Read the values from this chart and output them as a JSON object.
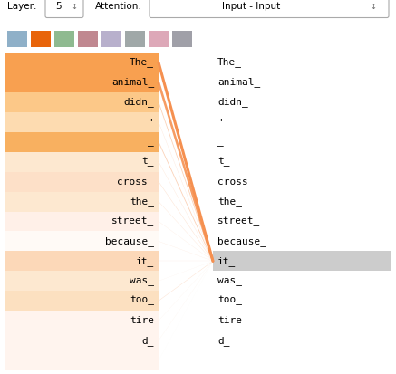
{
  "tokens": [
    "The_",
    "animal_",
    "didn_",
    "'",
    "_",
    "t_",
    "cross_",
    "the_",
    "street_",
    "because_",
    "it_",
    "was_",
    "too_",
    "tire",
    "d_",
    ""
  ],
  "left_bg_colors": [
    "#f8a050",
    "#f8a050",
    "#fcc888",
    "#fddbb0",
    "#f8b060",
    "#fde8d0",
    "#fde0c8",
    "#fde8d0",
    "#fff0e8",
    "#fffaf6",
    "#fcd8b8",
    "#fde8d0",
    "#fce0c0",
    "#fff4ee",
    "#fff4ee",
    "#fff4ee"
  ],
  "attention_weights": [
    0.33,
    0.28,
    0.09,
    0.04,
    0.09,
    0.04,
    0.05,
    0.04,
    0.03,
    0.03,
    0.03,
    0.02,
    0.05,
    0.02,
    0.02,
    0.01
  ],
  "target_token_idx": 10,
  "head_colors": [
    "#8fb0c8",
    "#e8640a",
    "#8fba90",
    "#c08890",
    "#b8b0cc",
    "#a0a8a8",
    "#dda8b8",
    "#a0a0a8"
  ],
  "layer": "5",
  "attention_type": "Input - Input",
  "line_color": "#f59050",
  "right_highlight_color": "#cccccc",
  "bg_color": "#ffffff",
  "fig_w": 4.37,
  "fig_h": 4.13,
  "dpi": 100
}
